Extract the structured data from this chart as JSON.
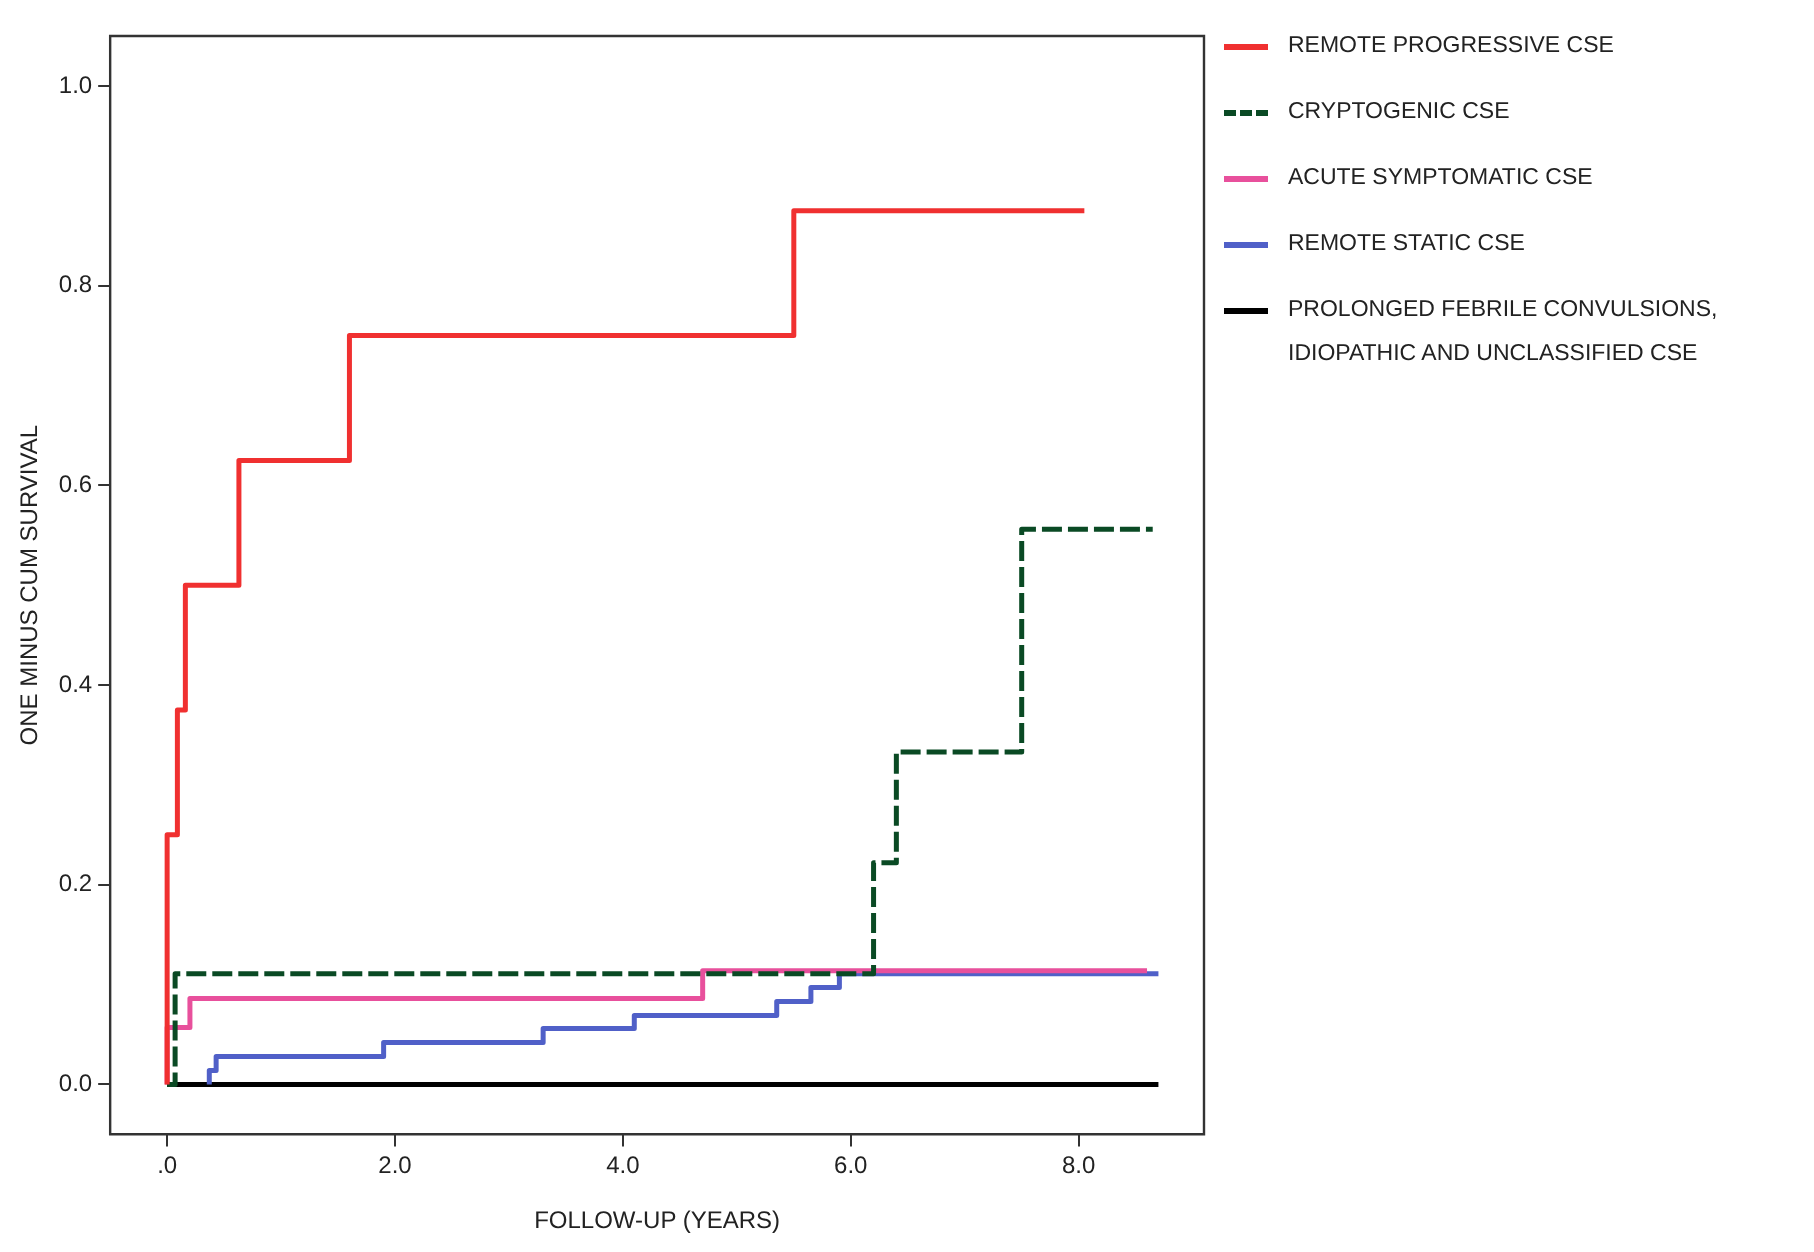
{
  "chart_data": {
    "type": "step",
    "xlabel": "FOLLOW-UP (YEARS)",
    "ylabel": "ONE MINUS CUM SURVIVAL",
    "xlim": [
      -0.5,
      9.1
    ],
    "ylim": [
      -0.05,
      1.05
    ],
    "xticks": [
      {
        "value": 0,
        "label": ".0"
      },
      {
        "value": 2,
        "label": "2.0"
      },
      {
        "value": 4,
        "label": "4.0"
      },
      {
        "value": 6,
        "label": "6.0"
      },
      {
        "value": 8,
        "label": "8.0"
      }
    ],
    "yticks": [
      {
        "value": 0,
        "label": "0.0"
      },
      {
        "value": 0.2,
        "label": "0.2"
      },
      {
        "value": 0.4,
        "label": "0.4"
      },
      {
        "value": 0.6,
        "label": "0.6"
      },
      {
        "value": 0.8,
        "label": "0.8"
      },
      {
        "value": 1,
        "label": "1.0"
      }
    ],
    "grid": false,
    "legend": "right",
    "marker": "none",
    "series": [
      {
        "name": "REMOTE PROGRESSIVE CSE",
        "color": "#f03030",
        "line_style": "solid",
        "x": [
          0,
          0,
          0.09,
          0.16,
          0.63,
          1.6,
          5.5,
          8.05
        ],
        "values": [
          0,
          0.25,
          0.375,
          0.5,
          0.625,
          0.75,
          0.875,
          0.875
        ]
      },
      {
        "name": "CRYPTOGENIC CSE",
        "color": "#0a4a24",
        "line_style": "dashed",
        "x": [
          0,
          0.07,
          6.2,
          6.4,
          7.5,
          8.65
        ],
        "values": [
          0,
          0.111,
          0.222,
          0.333,
          0.556,
          0.556
        ]
      },
      {
        "name": "ACUTE SYMPTOMATIC CSE",
        "color": "#e8509c",
        "line_style": "solid",
        "x": [
          0,
          0,
          0.2,
          4.7,
          8.6
        ],
        "values": [
          0,
          0.057,
          0.086,
          0.114,
          0.114
        ]
      },
      {
        "name": "REMOTE STATIC CSE",
        "color": "#5060c8",
        "line_style": "solid",
        "x": [
          0.37,
          0.37,
          0.43,
          1.9,
          3.3,
          4.1,
          5.35,
          5.65,
          5.9,
          8.7
        ],
        "values": [
          0,
          0.014,
          0.028,
          0.042,
          0.056,
          0.069,
          0.083,
          0.097,
          0.111,
          0.111
        ]
      },
      {
        "name": "PROLONGED FEBRILE CONVULSIONS, IDIOPATHIC AND UNCLASSIFIED CSE",
        "color": "#000000",
        "line_style": "solid",
        "x": [
          0,
          8.7
        ],
        "values": [
          0,
          0
        ]
      }
    ]
  }
}
